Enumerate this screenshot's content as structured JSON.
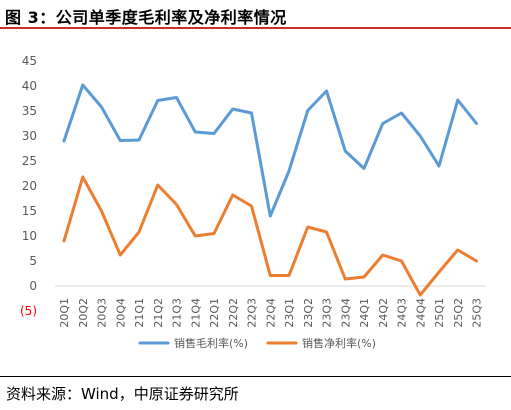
{
  "figure": {
    "title": "图 3：公司单季度毛利率及净利率情况",
    "source": "资料来源：Wind，中原证券研究所"
  },
  "colors": {
    "title_rule": "#c9302c",
    "gross_margin": "#5b9bd5",
    "net_margin": "#ed7d31",
    "axis_text": "#595959",
    "negative_text": "#ff0000",
    "axis_line": "#d9d9d9"
  },
  "chart_data": {
    "type": "line",
    "title": "",
    "xlabel": "",
    "ylabel": "",
    "ylim": [
      -5,
      45
    ],
    "yticks": [
      45,
      40,
      35,
      30,
      25,
      20,
      15,
      10,
      5,
      0,
      -5
    ],
    "ytick_labels": [
      "45",
      "40",
      "35",
      "30",
      "25",
      "20",
      "15",
      "10",
      "5",
      "0",
      "(5)"
    ],
    "grid": false,
    "legend_position": "bottom",
    "categories": [
      "20Q1",
      "20Q2",
      "20Q3",
      "20Q4",
      "21Q1",
      "21Q2",
      "21Q3",
      "21Q4",
      "22Q1",
      "22Q2",
      "22Q3",
      "22Q4",
      "23Q1",
      "23Q2",
      "23Q3",
      "23Q4",
      "24Q1",
      "24Q2",
      "24Q3",
      "24Q4",
      "25Q1",
      "25Q2",
      "25Q3"
    ],
    "series": [
      {
        "name": "销售毛利率(%)",
        "color": "#5b9bd5",
        "values": [
          29,
          40.2,
          35.8,
          29.1,
          29.2,
          37.1,
          37.7,
          30.8,
          30.5,
          35.4,
          34.6,
          14,
          23,
          35.1,
          39,
          27,
          23.5,
          32.5,
          34.6,
          30,
          24,
          37.2,
          32.5
        ]
      },
      {
        "name": "销售净利率(%)",
        "color": "#ed7d31",
        "values": [
          9,
          21.8,
          15,
          6.2,
          10.8,
          20.2,
          16.3,
          10,
          10.5,
          18.2,
          16,
          2.1,
          2.1,
          11.8,
          10.8,
          1.4,
          1.8,
          6.2,
          5,
          -1.8,
          2.8,
          7.2,
          5
        ]
      }
    ]
  }
}
